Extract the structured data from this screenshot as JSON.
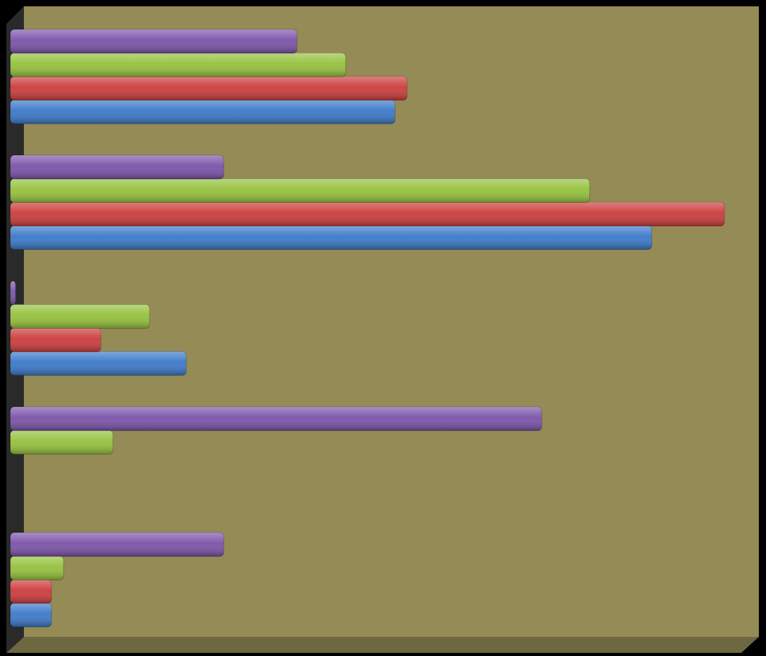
{
  "chart_data": {
    "type": "bar",
    "orientation": "horizontal",
    "categories": [
      null,
      null,
      null,
      null,
      null
    ],
    "series": [
      {
        "color": "#3a78c8",
        "values": [
          51.4,
          85.7,
          23.5,
          0,
          5.5
        ]
      },
      {
        "color": "#cc3b3b",
        "values": [
          53,
          95.4,
          12.1,
          0,
          5.5
        ]
      },
      {
        "color": "#94c13c",
        "values": [
          44.8,
          77.4,
          18.6,
          13.7,
          7.1
        ]
      },
      {
        "color": "#7a52a8",
        "values": [
          38.3,
          28.5,
          0.7,
          71,
          28.5
        ]
      }
    ],
    "xlim": [
      0,
      100
    ]
  }
}
